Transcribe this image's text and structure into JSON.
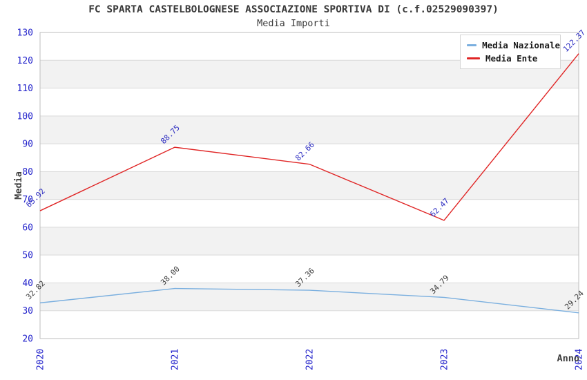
{
  "chart_data": {
    "type": "line",
    "title": "FC SPARTA CASTELBOLOGNESE ASSOCIAZIONE SPORTIVA DI (c.f.02529090397)",
    "subtitle": "Media Importi",
    "xlabel": "Anno",
    "ylabel": "Media",
    "x": [
      "2020",
      "2021",
      "2022",
      "2023",
      "2024"
    ],
    "series": [
      {
        "name": "Media Nazionale",
        "color": "#7aafdf",
        "label_color": "#3d3d3d",
        "values": [
          32.82,
          38.0,
          37.36,
          34.79,
          29.24
        ]
      },
      {
        "name": "Media Ente",
        "color": "#e02525",
        "label_color": "#2a2ac0",
        "values": [
          65.92,
          88.75,
          82.66,
          62.47,
          122.37
        ]
      }
    ],
    "ylim": [
      20,
      130
    ],
    "ytick_step": 10,
    "yticks": [
      20,
      30,
      40,
      50,
      60,
      70,
      80,
      90,
      100,
      110,
      120,
      130
    ],
    "grid": "horizontal-bands",
    "legend_position": "top-right",
    "colors": {
      "tick_label": "#2323cb",
      "band_gray": "#f2f2f2",
      "grid_line": "#d9d9d9",
      "frame": "#bdbdbd",
      "axis_text": "#3d3d3d"
    }
  }
}
